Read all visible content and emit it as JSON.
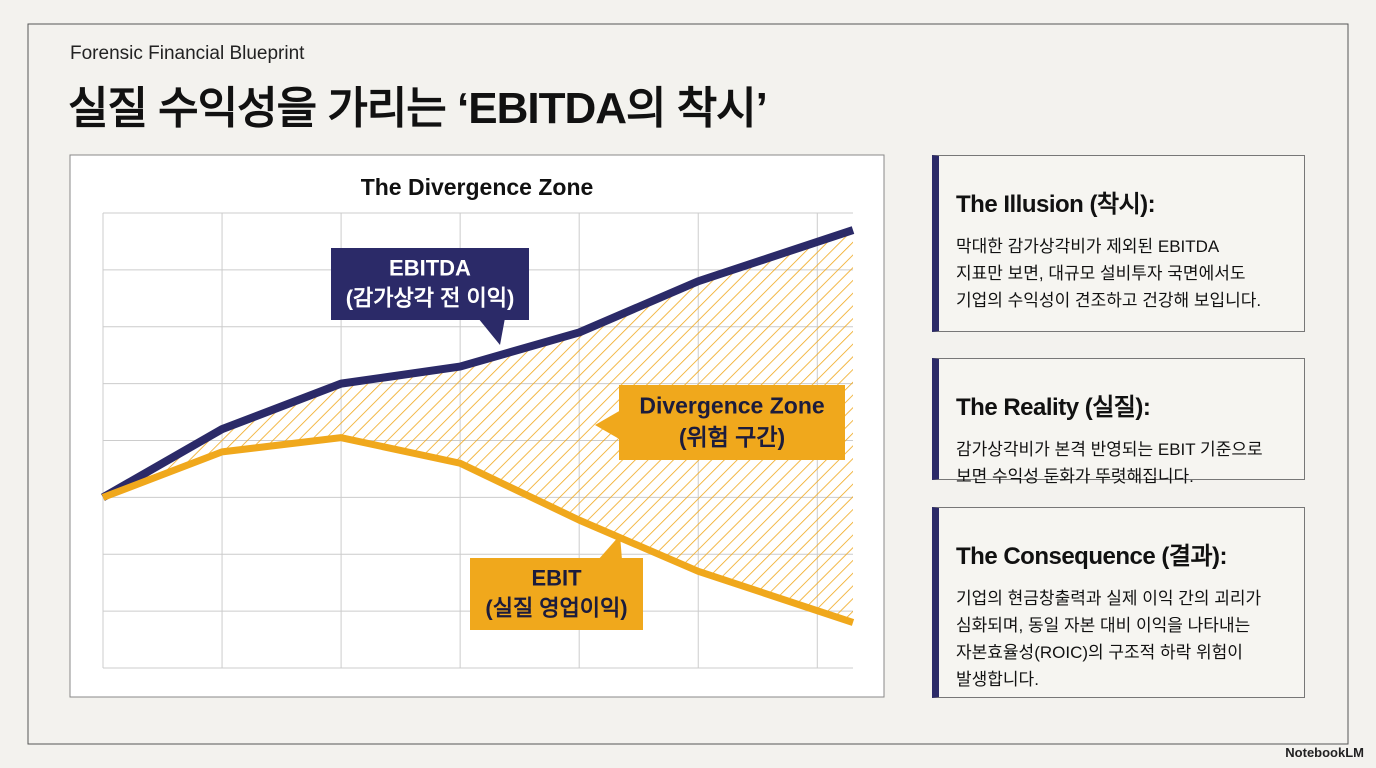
{
  "header": {
    "kicker": "Forensic Financial Blueprint",
    "title": "실질 수익성을 가리는 ‘EBITDA의 착시’"
  },
  "chart_data": {
    "type": "line",
    "title": "The Divergence Zone",
    "x": [
      0,
      1,
      2,
      3,
      4,
      5,
      6.3
    ],
    "xlim": [
      0,
      6.3
    ],
    "xticks": [
      0,
      1,
      2,
      3,
      4,
      5,
      6
    ],
    "ylim": [
      0,
      8
    ],
    "yticks": [
      0,
      1,
      2,
      3,
      4,
      5,
      6,
      7,
      8
    ],
    "grid": true,
    "series": [
      {
        "name": "EBITDA",
        "note": "(감가상각 전 이익)",
        "color": "#2b2a68",
        "values": [
          3.0,
          4.2,
          5.0,
          5.3,
          5.9,
          6.8,
          7.7
        ]
      },
      {
        "name": "EBIT",
        "note": "(실질 영업이익)",
        "color": "#f0a81c",
        "values": [
          3.0,
          3.8,
          4.05,
          3.6,
          2.6,
          1.7,
          0.8
        ]
      }
    ],
    "zone": {
      "name": "Divergence Zone",
      "note": "(위험 구간)",
      "color": "#f0a81c"
    }
  },
  "panels": [
    {
      "heading": "The Illusion (착시):",
      "lines": [
        "막대한 감가상각비가 제외된 EBITDA",
        "지표만 보면, 대규모 설비투자 국면에서도",
        "기업의 수익성이 견조하고 건강해 보입니다."
      ]
    },
    {
      "heading": "The Reality (실질):",
      "lines": [
        "감가상각비가 본격 반영되는 EBIT 기준으로",
        "보면 수익성 둔화가 뚜렷해집니다."
      ]
    },
    {
      "heading": "The Consequence (결과):",
      "lines": [
        "기업의 현금창출력과 실제 이익 간의 괴리가",
        "심화되며, 동일 자본 대비 이익을 나타내는",
        "자본효율성(ROIC)의 구조적 하락 위험이",
        "발생합니다."
      ]
    }
  ],
  "brand": "NotebookLM"
}
